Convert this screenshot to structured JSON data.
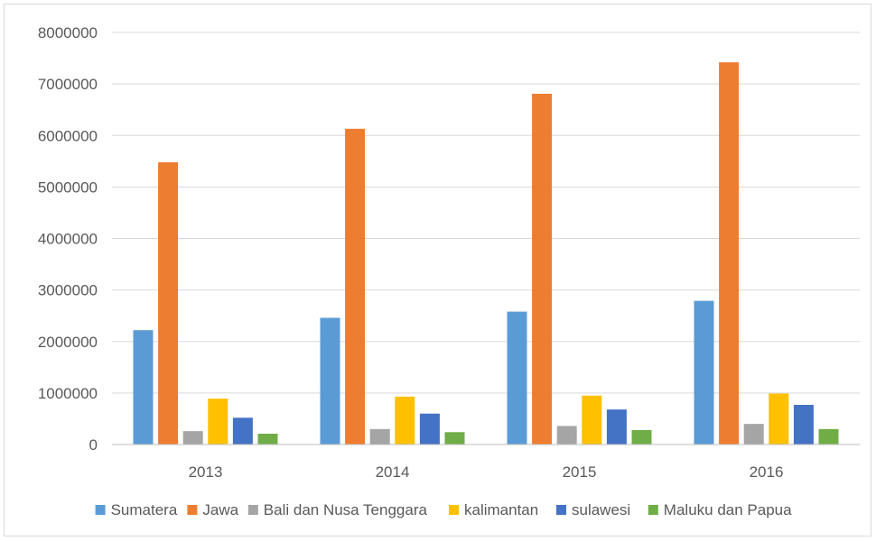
{
  "chart_data": {
    "type": "bar",
    "title": "",
    "xlabel": "",
    "ylabel": "",
    "categories": [
      "2013",
      "2014",
      "2015",
      "2016"
    ],
    "ylim": [
      0,
      8000000
    ],
    "yticks": [
      0,
      1000000,
      2000000,
      3000000,
      4000000,
      5000000,
      6000000,
      7000000,
      8000000
    ],
    "ytick_labels": [
      "0",
      "1000000",
      "2000000",
      "3000000",
      "4000000",
      "5000000",
      "6000000",
      "7000000",
      "8000000"
    ],
    "grid": true,
    "legend_position": "bottom",
    "series": [
      {
        "name": "Sumatera",
        "color": "#5B9BD5",
        "values": [
          2220000,
          2460000,
          2580000,
          2790000
        ]
      },
      {
        "name": "Jawa",
        "color": "#ED7D31",
        "values": [
          5480000,
          6130000,
          6810000,
          7420000
        ]
      },
      {
        "name": "Bali dan Nusa Tenggara",
        "color": "#A5A5A5",
        "values": [
          260000,
          300000,
          360000,
          400000
        ]
      },
      {
        "name": "kalimantan",
        "color": "#FFC000",
        "values": [
          890000,
          930000,
          950000,
          990000
        ]
      },
      {
        "name": "sulawesi",
        "color": "#4472C4",
        "values": [
          520000,
          600000,
          680000,
          770000
        ]
      },
      {
        "name": "Maluku dan Papua",
        "color": "#70AD47",
        "values": [
          210000,
          240000,
          280000,
          300000
        ]
      }
    ]
  }
}
